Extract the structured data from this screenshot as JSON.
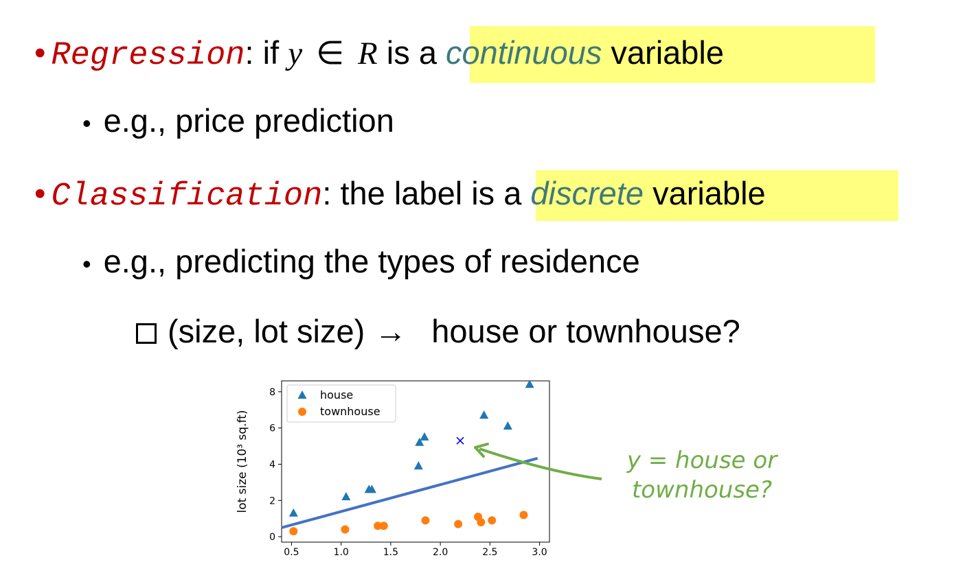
{
  "items": {
    "regression": {
      "bullet": "•",
      "term": "Regression",
      "after_term": ": if ",
      "var": "y",
      "elem": "∈",
      "set": "R",
      "pre_hl": " is",
      "hl_a": "a",
      "hl_em": "continuous",
      "hl_rest": "variable"
    },
    "regression_example": {
      "bullet": "•",
      "text": "e.g., price prediction"
    },
    "classification": {
      "bullet": "•",
      "term": "Classification",
      "after_term": ": the label is",
      "hl_a": "a",
      "hl_em": "discrete",
      "hl_rest": "variable"
    },
    "classification_example": {
      "bullet": "•",
      "text": "e.g., predicting the types of residence"
    },
    "subitem": {
      "text": "(size, lot size)",
      "arrow": "→",
      "rest": "house or townhouse?"
    }
  },
  "annotation": {
    "line1": "y = house or",
    "line2": "townhouse?"
  },
  "colors": {
    "red": "#c00000",
    "highlight": "#ffff80",
    "teal": "#3f7a7a",
    "green": "#70ad47",
    "house": "#1f77b4",
    "townhouse": "#ff7f0e",
    "line": "#4472c4",
    "query": "#0000ff"
  },
  "chart_data": {
    "type": "scatter",
    "ylabel": "lot size (10³ sq.ft)",
    "xlim": [
      0.4,
      3.1
    ],
    "ylim": [
      -0.3,
      8.6
    ],
    "xticks": [
      "0.5",
      "1.0",
      "1.5",
      "2.0",
      "2.5",
      "3.0"
    ],
    "yticks": [
      "0",
      "2",
      "4",
      "6",
      "8"
    ],
    "legend_position": "top-left",
    "series": [
      {
        "name": "house",
        "marker": "triangle",
        "points": [
          [
            0.52,
            1.3
          ],
          [
            1.05,
            2.2
          ],
          [
            1.28,
            2.6
          ],
          [
            1.31,
            2.6
          ],
          [
            1.78,
            3.9
          ],
          [
            1.79,
            5.2
          ],
          [
            1.84,
            5.5
          ],
          [
            2.44,
            6.7
          ],
          [
            2.68,
            6.1
          ],
          [
            2.9,
            8.4
          ]
        ]
      },
      {
        "name": "townhouse",
        "marker": "circle",
        "points": [
          [
            0.52,
            0.3
          ],
          [
            1.04,
            0.4
          ],
          [
            1.37,
            0.6
          ],
          [
            1.43,
            0.6
          ],
          [
            1.85,
            0.9
          ],
          [
            2.18,
            0.7
          ],
          [
            2.38,
            1.1
          ],
          [
            2.41,
            0.8
          ],
          [
            2.52,
            0.9
          ],
          [
            2.84,
            1.2
          ]
        ]
      }
    ],
    "query_point": [
      2.2,
      5.3
    ],
    "decision_line": [
      [
        0.4,
        0.5
      ],
      [
        3.3,
        4.8
      ]
    ]
  }
}
